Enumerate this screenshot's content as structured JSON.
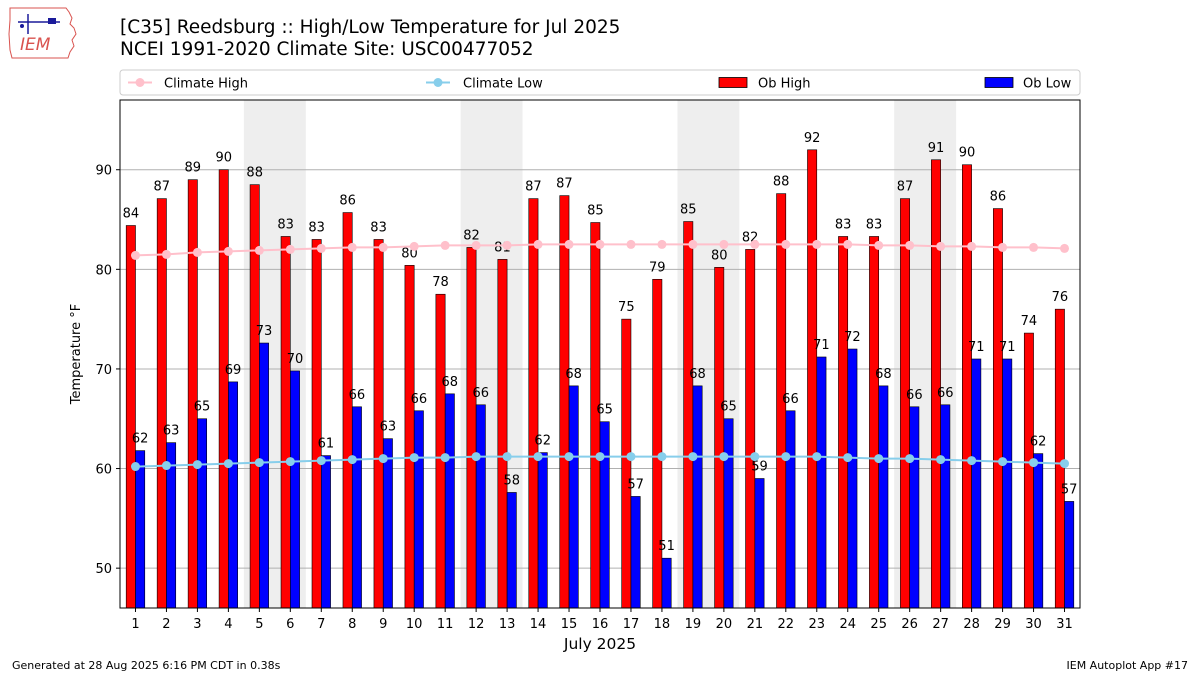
{
  "header": {
    "logo_text": "IEM",
    "title_line1": "[C35] Reedsburg :: High/Low Temperature for Jul 2025",
    "title_line2": "NCEI 1991-2020 Climate Site: USC00477052"
  },
  "footer": {
    "generated": "Generated at 28 Aug 2025 6:16 PM CDT in 0.38s",
    "app": "IEM Autoplot App #17"
  },
  "colors": {
    "ob_high": "#ff0000",
    "ob_low": "#0000ff",
    "climate_high": "#ffc0cb",
    "climate_low": "#87ceeb",
    "weekend_shade": "#eeeeee",
    "grid": "#b0b0b0"
  },
  "chart_data": {
    "type": "bar",
    "xlabel": "July 2025",
    "ylabel": "Temperature °F",
    "ylim": [
      46,
      97
    ],
    "yticks": [
      50,
      60,
      70,
      80,
      90
    ],
    "grid": "horizontal",
    "legend_position": "top",
    "categories": [
      1,
      2,
      3,
      4,
      5,
      6,
      7,
      8,
      9,
      10,
      11,
      12,
      13,
      14,
      15,
      16,
      17,
      18,
      19,
      20,
      21,
      22,
      23,
      24,
      25,
      26,
      27,
      28,
      29,
      30,
      31
    ],
    "shaded_weekends": [
      [
        5,
        6
      ],
      [
        12,
        13
      ],
      [
        19,
        20
      ],
      [
        26,
        27
      ]
    ],
    "series": [
      {
        "name": "Ob High",
        "kind": "bar",
        "values": [
          84.4,
          87.1,
          89.0,
          90.0,
          88.5,
          83.3,
          83.0,
          85.7,
          83.0,
          80.4,
          77.5,
          82.2,
          81.0,
          87.1,
          87.4,
          84.7,
          75.0,
          79.0,
          84.8,
          80.2,
          82.0,
          87.6,
          92.0,
          83.3,
          83.3,
          87.1,
          91.0,
          90.5,
          86.1,
          73.6,
          76.0
        ],
        "labels": [
          84,
          87,
          89,
          90,
          88,
          83,
          83,
          86,
          83,
          80,
          78,
          82,
          81,
          87,
          87,
          85,
          75,
          79,
          85,
          80,
          82,
          88,
          92,
          83,
          83,
          87,
          91,
          90,
          86,
          74,
          76
        ]
      },
      {
        "name": "Ob Low",
        "kind": "bar",
        "values": [
          61.8,
          62.6,
          65.0,
          68.7,
          72.6,
          69.8,
          61.3,
          66.2,
          63.0,
          65.8,
          67.5,
          66.4,
          57.6,
          61.6,
          68.3,
          64.7,
          57.2,
          51.0,
          68.3,
          65.0,
          59.0,
          65.8,
          71.2,
          72.0,
          68.3,
          66.2,
          66.4,
          71.0,
          71.0,
          61.5,
          56.7
        ],
        "labels": [
          62,
          63,
          65,
          69,
          73,
          70,
          61,
          66,
          63,
          66,
          68,
          66,
          58,
          62,
          68,
          65,
          57,
          51,
          68,
          65,
          59,
          66,
          71,
          72,
          68,
          66,
          66,
          71,
          71,
          62,
          57
        ]
      },
      {
        "name": "Climate High",
        "kind": "line",
        "values": [
          81.4,
          81.5,
          81.7,
          81.8,
          81.9,
          82.0,
          82.1,
          82.2,
          82.2,
          82.3,
          82.4,
          82.4,
          82.4,
          82.5,
          82.5,
          82.5,
          82.5,
          82.5,
          82.5,
          82.5,
          82.5,
          82.5,
          82.5,
          82.5,
          82.4,
          82.4,
          82.3,
          82.3,
          82.2,
          82.2,
          82.1
        ]
      },
      {
        "name": "Climate Low",
        "kind": "line",
        "values": [
          60.2,
          60.3,
          60.4,
          60.5,
          60.6,
          60.7,
          60.8,
          60.9,
          61.0,
          61.1,
          61.1,
          61.2,
          61.2,
          61.2,
          61.2,
          61.2,
          61.2,
          61.2,
          61.2,
          61.2,
          61.2,
          61.2,
          61.2,
          61.1,
          61.0,
          61.0,
          60.9,
          60.8,
          60.7,
          60.6,
          60.5
        ]
      }
    ]
  }
}
